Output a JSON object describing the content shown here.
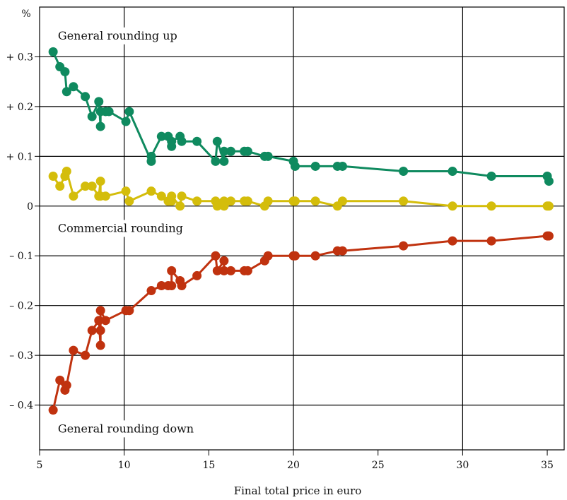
{
  "chart_data": {
    "type": "line",
    "xlabel": "Final total price in euro",
    "ylabel": "%",
    "xlim": [
      5,
      36
    ],
    "ylim": [
      -0.49,
      0.4
    ],
    "x_ticks": [
      5,
      10,
      15,
      20,
      25,
      30,
      35
    ],
    "y_ticks": [
      {
        "value": 0.3,
        "label": "+ 0.3"
      },
      {
        "value": 0.2,
        "label": "+ 0.2"
      },
      {
        "value": 0.1,
        "label": "+ 0.1"
      },
      {
        "value": 0,
        "label": "0"
      },
      {
        "value": -0.1,
        "label": "– 0.1"
      },
      {
        "value": -0.2,
        "label": "– 0.2"
      },
      {
        "value": -0.3,
        "label": "– 0.3"
      },
      {
        "value": -0.4,
        "label": "– 0.4"
      }
    ],
    "grid": true,
    "annotations": [
      {
        "text": "General rounding up",
        "x": 6.0,
        "y": 0.335
      },
      {
        "text": "Commercial rounding",
        "x": 6.0,
        "y": -0.052
      },
      {
        "text": "General rounding down",
        "x": 6.0,
        "y": -0.455
      }
    ],
    "series": [
      {
        "name": "General rounding up",
        "color": "#0f8a5f",
        "x": [
          5.8,
          6.2,
          6.5,
          6.6,
          7.0,
          7.7,
          8.1,
          8.5,
          8.6,
          8.6,
          8.9,
          9.1,
          10.1,
          10.3,
          11.6,
          11.6,
          12.2,
          12.6,
          12.8,
          12.8,
          13.3,
          13.4,
          14.3,
          15.4,
          15.5,
          15.9,
          15.9,
          16.3,
          17.1,
          17.3,
          18.3,
          18.5,
          20.0,
          20.1,
          21.3,
          22.6,
          22.9,
          26.5,
          29.4,
          31.7,
          35.0,
          35.1
        ],
        "y": [
          0.31,
          0.28,
          0.27,
          0.23,
          0.24,
          0.22,
          0.18,
          0.21,
          0.16,
          0.19,
          0.19,
          0.19,
          0.17,
          0.19,
          0.09,
          0.1,
          0.14,
          0.14,
          0.12,
          0.13,
          0.14,
          0.13,
          0.13,
          0.09,
          0.13,
          0.09,
          0.11,
          0.11,
          0.11,
          0.11,
          0.1,
          0.1,
          0.09,
          0.08,
          0.08,
          0.08,
          0.08,
          0.07,
          0.07,
          0.06,
          0.06,
          0.05
        ]
      },
      {
        "name": "Commercial rounding",
        "color": "#d4bd0b",
        "x": [
          5.8,
          6.2,
          6.5,
          6.6,
          7.0,
          7.7,
          8.1,
          8.5,
          8.6,
          8.6,
          8.9,
          10.1,
          10.3,
          11.6,
          12.2,
          12.6,
          12.8,
          12.8,
          13.3,
          13.4,
          14.3,
          15.4,
          15.5,
          15.9,
          15.9,
          16.3,
          17.1,
          17.3,
          18.3,
          18.5,
          20.0,
          20.1,
          21.3,
          22.6,
          22.9,
          26.5,
          29.4,
          31.7,
          35.0,
          35.1
        ],
        "y": [
          0.06,
          0.04,
          0.06,
          0.07,
          0.02,
          0.04,
          0.04,
          0.02,
          0.05,
          0.02,
          0.02,
          0.03,
          0.01,
          0.03,
          0.02,
          0.01,
          0.01,
          0.02,
          0.0,
          0.02,
          0.01,
          0.01,
          0.0,
          0.01,
          0.0,
          0.01,
          0.01,
          0.01,
          0.0,
          0.01,
          0.01,
          0.01,
          0.01,
          0.0,
          0.01,
          0.01,
          0.0,
          0.0,
          0.0,
          0.0
        ]
      },
      {
        "name": "General rounding down",
        "color": "#c0320f",
        "x": [
          5.8,
          6.2,
          6.5,
          6.6,
          7.0,
          7.7,
          8.1,
          8.5,
          8.6,
          8.6,
          8.6,
          8.9,
          10.1,
          10.3,
          11.6,
          12.2,
          12.6,
          12.8,
          12.8,
          13.3,
          13.4,
          14.3,
          15.4,
          15.5,
          15.9,
          15.9,
          16.3,
          17.1,
          17.3,
          18.3,
          18.5,
          20.0,
          20.1,
          21.3,
          22.6,
          22.9,
          26.5,
          29.4,
          31.7,
          35.0,
          35.1
        ],
        "y": [
          -0.41,
          -0.35,
          -0.37,
          -0.36,
          -0.29,
          -0.3,
          -0.25,
          -0.23,
          -0.28,
          -0.25,
          -0.21,
          -0.23,
          -0.21,
          -0.21,
          -0.17,
          -0.16,
          -0.16,
          -0.16,
          -0.13,
          -0.15,
          -0.16,
          -0.14,
          -0.1,
          -0.13,
          -0.11,
          -0.13,
          -0.13,
          -0.13,
          -0.13,
          -0.11,
          -0.1,
          -0.1,
          -0.1,
          -0.1,
          -0.09,
          -0.09,
          -0.08,
          -0.07,
          -0.07,
          -0.06,
          -0.06
        ]
      }
    ]
  }
}
